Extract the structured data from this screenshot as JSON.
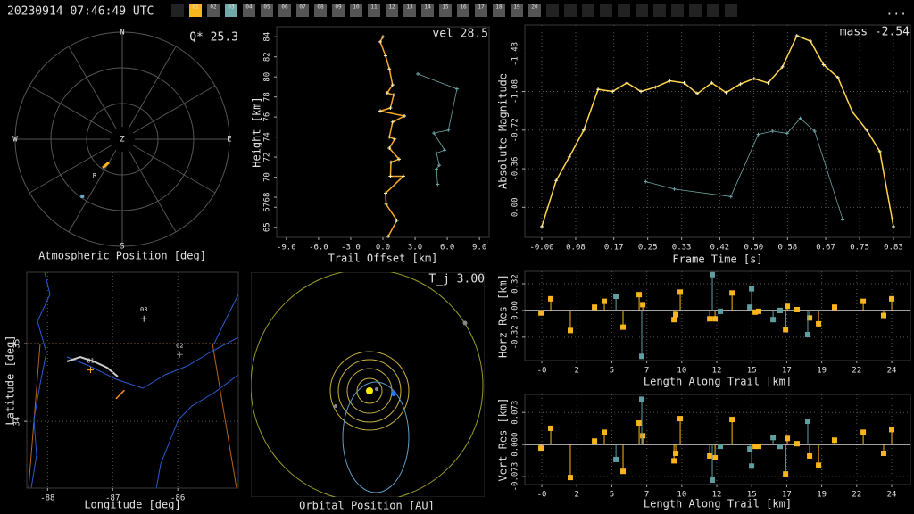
{
  "header": {
    "timestamp": "20230914 07:46:49 UTC",
    "menu": "...",
    "stations": [
      {
        "label": "01",
        "color": "#f9b51e"
      },
      {
        "label": "02",
        "color": "#555555"
      },
      {
        "label": "03",
        "color": "#6fa8a8"
      },
      {
        "label": "04",
        "color": "#555555"
      },
      {
        "label": "05",
        "color": "#555555"
      },
      {
        "label": "06",
        "color": "#555555"
      },
      {
        "label": "07",
        "color": "#555555"
      },
      {
        "label": "08",
        "color": "#555555"
      },
      {
        "label": "09",
        "color": "#555555"
      },
      {
        "label": "10",
        "color": "#555555"
      },
      {
        "label": "11",
        "color": "#555555"
      },
      {
        "label": "12",
        "color": "#555555"
      },
      {
        "label": "13",
        "color": "#555555"
      },
      {
        "label": "14",
        "color": "#555555"
      },
      {
        "label": "15",
        "color": "#555555"
      },
      {
        "label": "16",
        "color": "#555555"
      },
      {
        "label": "17",
        "color": "#555555"
      },
      {
        "label": "18",
        "color": "#555555"
      },
      {
        "label": "19",
        "color": "#555555"
      },
      {
        "label": "20",
        "color": "#555555"
      }
    ]
  },
  "chart_data": [
    {
      "type": "polar",
      "annotation": "Q* 25.3",
      "xlabel": "Atmospheric Position [deg]",
      "directions": [
        "N",
        "E",
        "S",
        "W"
      ],
      "zenith": "Z",
      "marker_label": "R",
      "series": [
        {
          "color": "#f9b51e",
          "azimuth": [
            214.5,
            210.0
          ],
          "altitude": [
            60.9,
            67.5
          ]
        },
        {
          "color": "#6fa8c8",
          "azimuth": [
            215.0
          ],
          "altitude": [
            31.5
          ]
        }
      ]
    },
    {
      "type": "line",
      "annotation": "vel 28.5",
      "xlabel": "Trail Offset [km]",
      "ylabel": "Height [km]",
      "grid": false,
      "xlim": [
        -9.9,
        9.9
      ],
      "ylim": [
        64,
        85
      ],
      "xticks": [
        {
          "value": -9,
          "label": "-9.0"
        },
        {
          "value": -6,
          "label": "-6.0"
        },
        {
          "value": -3,
          "label": "-3.0"
        },
        {
          "value": 0,
          "label": "0.0"
        },
        {
          "value": 3,
          "label": "3.0"
        },
        {
          "value": 6,
          "label": "6.0"
        },
        {
          "value": 9,
          "label": "9.0"
        }
      ],
      "yticks": [
        65,
        67,
        68,
        70,
        72,
        74,
        76,
        78,
        80,
        82,
        84
      ],
      "series": [
        {
          "color": "#f9a825",
          "x": [
            0.0,
            -0.25,
            0.25,
            0.6,
            0.9,
            0.4,
            1.0,
            0.7,
            -0.25,
            2.0,
            0.9,
            0.6,
            1.1,
            0.6,
            1.5,
            0.75,
            0.7,
            1.9,
            0.25,
            0.3,
            1.3,
            0.5
          ],
          "values": [
            84.0,
            83.5,
            82.1,
            80.8,
            79.2,
            78.4,
            78.2,
            76.9,
            76.6,
            76.1,
            75.5,
            74.0,
            73.8,
            72.9,
            71.8,
            71.5,
            70.1,
            70.1,
            68.4,
            67.3,
            65.7,
            64.1
          ]
        },
        {
          "color": "#6fa8a8",
          "x": [
            3.25,
            6.9,
            6.1,
            4.75,
            5.75,
            5.0,
            5.25,
            5.0,
            5.1
          ],
          "values": [
            80.3,
            78.8,
            74.7,
            74.4,
            72.7,
            72.4,
            71.2,
            70.8,
            69.3
          ]
        }
      ]
    },
    {
      "type": "line",
      "annotation": "mass -2.54",
      "xlabel": "Frame Time [s]",
      "ylabel": "Absolute Magnitude",
      "grid": true,
      "xlim": [
        -0.04,
        0.87
      ],
      "ylim": [
        0.28,
        -1.7
      ],
      "xticks": [
        {
          "value": 0,
          "label": "-0.00"
        },
        0.08,
        0.17,
        0.25,
        0.33,
        0.42,
        {
          "value": 0.5,
          "label": "0.50"
        },
        0.58,
        0.67,
        0.75,
        0.83
      ],
      "yticks": [
        -1.43,
        -1.08,
        -0.72,
        -0.36,
        {
          "value": 0,
          "label": "0.00"
        }
      ],
      "series": [
        {
          "color": "#ffd54a",
          "x": [
            0.0,
            0.034,
            0.065,
            0.099,
            0.133,
            0.167,
            0.201,
            0.234,
            0.268,
            0.302,
            0.336,
            0.367,
            0.401,
            0.435,
            0.469,
            0.501,
            0.534,
            0.568,
            0.602,
            0.634,
            0.665,
            0.699,
            0.733,
            0.767,
            0.798,
            0.83
          ],
          "values": [
            0.18,
            -0.25,
            -0.47,
            -0.72,
            -1.1,
            -1.08,
            -1.16,
            -1.08,
            -1.12,
            -1.18,
            -1.16,
            -1.06,
            -1.16,
            -1.07,
            -1.15,
            -1.2,
            -1.16,
            -1.31,
            -1.6,
            -1.55,
            -1.33,
            -1.21,
            -0.89,
            -0.72,
            -0.52,
            0.18
          ]
        },
        {
          "color": "#6fa8a8",
          "x": [
            0.245,
            0.313,
            0.446,
            0.511,
            0.545,
            0.579,
            0.61,
            0.644,
            0.71
          ],
          "values": [
            -0.24,
            -0.17,
            -0.1,
            -0.68,
            -0.71,
            -0.69,
            -0.83,
            -0.71,
            0.11
          ]
        }
      ]
    },
    {
      "type": "map",
      "xlabel": "Longitude [deg]",
      "ylabel": "Latitude [deg]",
      "grid": true,
      "xlim": [
        -88.32,
        -85.07
      ],
      "ylim": [
        33.14,
        35.92
      ],
      "xticks": [
        -88,
        -87,
        -86
      ],
      "yticks": [
        34,
        35
      ],
      "stations": {
        "labels": [
          "01",
          "02",
          "03"
        ],
        "lon": [
          -87.34,
          -85.97,
          -86.52
        ],
        "lat": [
          34.66,
          34.86,
          35.32
        ],
        "colors": [
          "#f9b51e",
          "#888888",
          "#cccccc"
        ]
      },
      "trail": {
        "color": "#ff8c1a",
        "lon": [
          -86.95,
          -86.82
        ],
        "lat": [
          34.29,
          34.4
        ]
      }
    },
    {
      "type": "orbit",
      "annotation": "T_j 3.00",
      "xlabel": "Orbital Position [AU]"
    },
    {
      "type": "stem",
      "xlabel": "Length Along Trail [km]",
      "ylabel": "Horz Res [km]",
      "grid": true,
      "xlim": [
        -1.18,
        25.6
      ],
      "ylim": [
        -0.6,
        0.47
      ],
      "xticks": [
        {
          "value": 0,
          "label": "-0"
        },
        {
          "value": 2.43,
          "label": "2"
        },
        {
          "value": 4.86,
          "label": "5"
        },
        {
          "value": 7.29,
          "label": "7"
        },
        {
          "value": 9.72,
          "label": "10"
        },
        {
          "value": 12.15,
          "label": "12"
        },
        {
          "value": 14.58,
          "label": "15"
        },
        {
          "value": 17.01,
          "label": "17"
        },
        {
          "value": 19.44,
          "label": "19"
        },
        {
          "value": 21.87,
          "label": "22"
        },
        {
          "value": 24.3,
          "label": "24"
        }
      ],
      "yticks": [
        -0.32,
        {
          "value": 0,
          "label": "0.00"
        },
        0.32
      ],
      "series": [
        {
          "color": "#f9b51e",
          "x": [
            -0.06,
            0.62,
            1.98,
            3.66,
            4.34,
            5.64,
            6.76,
            7.01,
            9.18,
            9.3,
            9.61,
            11.66,
            12.03,
            13.21,
            14.82,
            15.06,
            16.49,
            16.93,
            17.05,
            17.73,
            18.6,
            19.22,
            20.33,
            22.32,
            23.74,
            24.3
          ],
          "values": [
            -0.03,
            0.14,
            -0.24,
            0.04,
            0.11,
            -0.2,
            0.19,
            0.07,
            -0.11,
            -0.05,
            0.22,
            -0.1,
            -0.1,
            0.21,
            -0.02,
            -0.01,
            0.0,
            -0.23,
            0.05,
            0.01,
            -0.09,
            -0.16,
            0.04,
            0.11,
            -0.06,
            0.14
          ]
        },
        {
          "color": "#5f9ea0",
          "x": [
            5.15,
            6.94,
            11.84,
            12.4,
            14.45,
            14.57,
            16.06,
            16.55,
            18.47
          ],
          "values": [
            0.17,
            -0.55,
            0.43,
            -0.01,
            0.04,
            0.26,
            -0.11,
            0.0,
            -0.29
          ]
        }
      ]
    },
    {
      "type": "stem",
      "xlabel": "Length Along Trail [km]",
      "ylabel": "Vert Res [km]",
      "grid": true,
      "xlim": [
        -1.18,
        25.6
      ],
      "ylim": [
        -0.091,
        0.114
      ],
      "xticks": [
        {
          "value": 0,
          "label": "-0"
        },
        {
          "value": 2.43,
          "label": "2"
        },
        {
          "value": 4.86,
          "label": "5"
        },
        {
          "value": 7.29,
          "label": "7"
        },
        {
          "value": 9.72,
          "label": "10"
        },
        {
          "value": 12.15,
          "label": "12"
        },
        {
          "value": 14.58,
          "label": "15"
        },
        {
          "value": 17.01,
          "label": "17"
        },
        {
          "value": 19.44,
          "label": "19"
        },
        {
          "value": 21.87,
          "label": "22"
        },
        {
          "value": 24.3,
          "label": "24"
        }
      ],
      "yticks": [
        -0.073,
        {
          "value": 0,
          "label": "0.000"
        },
        0.073
      ],
      "series": [
        {
          "color": "#f9b51e",
          "x": [
            -0.06,
            0.62,
            1.98,
            3.66,
            4.34,
            5.64,
            6.76,
            7.01,
            9.18,
            9.3,
            9.61,
            11.66,
            12.03,
            13.21,
            14.82,
            15.06,
            16.49,
            16.93,
            17.05,
            17.73,
            18.6,
            19.22,
            20.33,
            22.32,
            23.74,
            24.3
          ],
          "values": [
            -0.008,
            0.037,
            -0.075,
            0.008,
            0.028,
            -0.061,
            0.049,
            0.02,
            -0.037,
            -0.02,
            0.059,
            -0.026,
            -0.03,
            0.057,
            -0.004,
            -0.004,
            -0.004,
            -0.067,
            0.014,
            0.002,
            -0.026,
            -0.047,
            0.01,
            0.028,
            -0.02,
            0.034
          ]
        },
        {
          "color": "#5f9ea0",
          "x": [
            5.15,
            6.94,
            11.84,
            12.4,
            14.45,
            14.57,
            16.06,
            16.55,
            18.47
          ],
          "values": [
            -0.034,
            0.103,
            -0.081,
            -0.004,
            -0.01,
            -0.049,
            0.016,
            -0.004,
            0.053
          ]
        }
      ]
    }
  ]
}
